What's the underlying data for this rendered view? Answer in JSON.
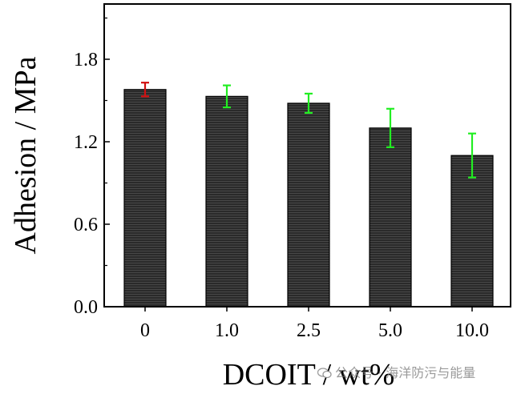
{
  "chart_data": {
    "type": "bar",
    "categories": [
      "0",
      "1.0",
      "2.5",
      "5.0",
      "10.0"
    ],
    "values": [
      1.58,
      1.53,
      1.48,
      1.3,
      1.1
    ],
    "errors": [
      0.05,
      0.08,
      0.07,
      0.14,
      0.16
    ],
    "error_colors": [
      "#d01010",
      "#22ee22",
      "#22ee22",
      "#22ee22",
      "#22ee22"
    ],
    "bar_color": "#222222",
    "xlabel": "DCOIT / wt%",
    "ylabel": "Adhesion / MPa",
    "ylim": [
      0,
      2.2
    ],
    "yticks": [
      "0.0",
      "0.6",
      "1.2",
      "1.8"
    ],
    "grid": false
  },
  "watermark": {
    "text": "公众号 · 海洋防污与能量",
    "icon": "wechat-icon"
  }
}
